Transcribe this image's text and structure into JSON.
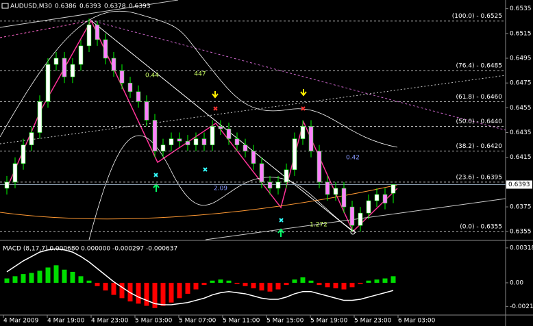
{
  "chart_data": [
    {
      "type": "candlestick",
      "symbol": "AUDUSD,M30",
      "header_values": [
        0.6386,
        0.6393,
        0.6378,
        0.6393
      ],
      "open": [
        0.639,
        0.6395,
        0.641,
        0.6425,
        0.6435,
        0.646,
        0.649,
        0.6495,
        0.648,
        0.649,
        0.6505,
        0.6522,
        0.651,
        0.6495,
        0.6485,
        0.6475,
        0.6468,
        0.646,
        0.6445,
        0.642,
        0.6425,
        0.643,
        0.6428,
        0.6425,
        0.643,
        0.6425,
        0.644,
        0.6438,
        0.643,
        0.6425,
        0.642,
        0.641,
        0.6395,
        0.639,
        0.6395,
        0.6405,
        0.643,
        0.644,
        0.642,
        0.6395,
        0.6385,
        0.639,
        0.6375,
        0.636,
        0.637,
        0.638,
        0.6385,
        0.6386
      ],
      "high": [
        0.64,
        0.6415,
        0.643,
        0.644,
        0.6465,
        0.6495,
        0.65,
        0.65,
        0.6495,
        0.651,
        0.6527,
        0.6525,
        0.6515,
        0.65,
        0.649,
        0.648,
        0.6473,
        0.6465,
        0.645,
        0.643,
        0.6435,
        0.6435,
        0.6433,
        0.6435,
        0.6435,
        0.6445,
        0.6445,
        0.6443,
        0.6435,
        0.643,
        0.6425,
        0.6415,
        0.64,
        0.64,
        0.641,
        0.6435,
        0.6445,
        0.6445,
        0.6425,
        0.64,
        0.6395,
        0.6395,
        0.638,
        0.6375,
        0.6385,
        0.639,
        0.639,
        0.6393
      ],
      "low": [
        0.6385,
        0.639,
        0.6405,
        0.642,
        0.643,
        0.6455,
        0.6485,
        0.6475,
        0.6475,
        0.6485,
        0.65,
        0.6505,
        0.649,
        0.648,
        0.647,
        0.6463,
        0.6455,
        0.644,
        0.6415,
        0.6415,
        0.642,
        0.6423,
        0.642,
        0.642,
        0.642,
        0.642,
        0.6433,
        0.6425,
        0.642,
        0.6415,
        0.6405,
        0.639,
        0.6385,
        0.6385,
        0.639,
        0.64,
        0.6425,
        0.6415,
        0.639,
        0.638,
        0.638,
        0.637,
        0.6355,
        0.6355,
        0.6365,
        0.6375,
        0.6373,
        0.6378
      ],
      "close": [
        0.6395,
        0.641,
        0.6425,
        0.6435,
        0.646,
        0.649,
        0.6495,
        0.648,
        0.649,
        0.6505,
        0.6522,
        0.651,
        0.6495,
        0.6485,
        0.6475,
        0.6468,
        0.646,
        0.6445,
        0.642,
        0.6425,
        0.643,
        0.6428,
        0.6425,
        0.643,
        0.6425,
        0.644,
        0.6438,
        0.643,
        0.6425,
        0.642,
        0.641,
        0.6395,
        0.639,
        0.6395,
        0.6405,
        0.643,
        0.644,
        0.642,
        0.6395,
        0.6385,
        0.639,
        0.6375,
        0.636,
        0.637,
        0.638,
        0.6385,
        0.6378,
        0.6393
      ],
      "up_color": "#ffffff",
      "down_color": "#ff80ff",
      "wick_color": "#00ff00",
      "ylim": [
        0.63485,
        0.6542
      ],
      "yticks": [
        0.6535,
        0.6515,
        0.6495,
        0.6475,
        0.6455,
        0.6435,
        0.6415,
        0.6375,
        0.6355
      ],
      "last_price": 0.6393,
      "fib_levels": [
        {
          "value": 0.6525,
          "label": "(100.0) - 0.6525"
        },
        {
          "value": 0.6485,
          "label": "(76.4) - 0.6485"
        },
        {
          "value": 0.646,
          "label": "(61.8) - 0.6460"
        },
        {
          "value": 0.644,
          "label": "(50.0) - 0.6440"
        },
        {
          "value": 0.642,
          "label": "(38.2) - 0.6420"
        },
        {
          "value": 0.6395,
          "label": "(23.6) - 0.6395"
        },
        {
          "value": 0.6355,
          "label": "(0.0) - 0.6355"
        }
      ],
      "annotations": [
        "447",
        "0.44",
        "0.42",
        "2.09",
        "1.272"
      ],
      "time_labels": [
        "4 Mar 2009",
        "4 Mar 19:00",
        "4 Mar 23:00",
        "5 Mar 03:00",
        "5 Mar 07:00",
        "5 Mar 11:00",
        "5 Mar 15:00",
        "5 Mar 19:00",
        "5 Mar 23:00",
        "6 Mar 03:00"
      ]
    },
    {
      "type": "macd",
      "title": "MACD (8,17,7) 0.000680 0.000000 -0.000297 -0.000637",
      "histogram": [
        0.0004,
        0.0006,
        0.0008,
        0.0009,
        0.0011,
        0.0014,
        0.0016,
        0.0012,
        0.001,
        0.0006,
        0.0002,
        -0.0003,
        -0.0007,
        -0.0011,
        -0.0014,
        -0.0017,
        -0.0019,
        -0.0021,
        -0.0023,
        -0.0021,
        -0.0018,
        -0.0014,
        -0.001,
        -0.0006,
        -0.0002,
        0.0002,
        0.0003,
        0.0002,
        -0.0001,
        -0.0003,
        -0.0005,
        -0.0007,
        -0.0008,
        -0.0006,
        -0.0002,
        0.0003,
        0.0005,
        0.0002,
        -0.0002,
        -0.0004,
        -0.0005,
        -0.0006,
        -0.0004,
        -0.0001,
        0.0002,
        0.0003,
        0.0004,
        0.0006
      ],
      "line": [
        0.001,
        0.0015,
        0.002,
        0.0024,
        0.0028,
        0.003,
        0.0031,
        0.003,
        0.0028,
        0.0024,
        0.0019,
        0.0013,
        0.0007,
        0.0001,
        -0.0004,
        -0.0009,
        -0.0013,
        -0.0016,
        -0.0019,
        -0.002,
        -0.002,
        -0.0019,
        -0.0018,
        -0.0016,
        -0.0014,
        -0.0011,
        -0.0009,
        -0.0008,
        -0.0009,
        -0.001,
        -0.0012,
        -0.0014,
        -0.0015,
        -0.0015,
        -0.0013,
        -0.001,
        -0.0008,
        -0.0008,
        -0.001,
        -0.0012,
        -0.0014,
        -0.0016,
        -0.0016,
        -0.0015,
        -0.0013,
        -0.0011,
        -0.0009,
        -0.0007
      ],
      "up_color": "#00dd00",
      "down_color": "#ff0000",
      "line_color": "#ffffff",
      "ylim": [
        -0.00294,
        0.00362
      ],
      "yticks": [
        0.003186,
        {
          "value": 0,
          "label": "0.00"
        },
        -0.00215
      ]
    }
  ]
}
